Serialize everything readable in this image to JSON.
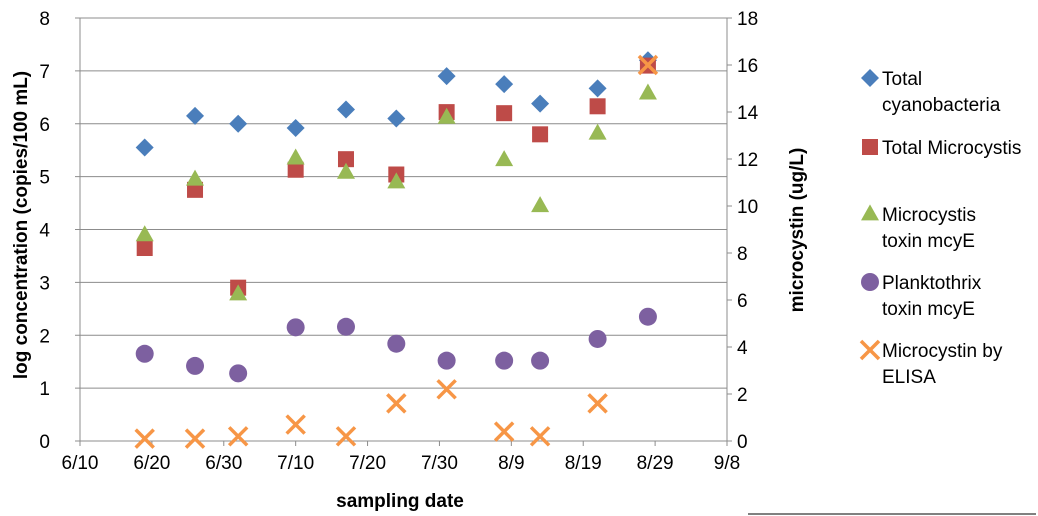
{
  "chart_data": {
    "type": "scatter",
    "title": "",
    "xlabel": "sampling date",
    "ylabel": "log concentration (copies/100 mL)",
    "y2label": "microcystin (ug/L)",
    "x_ticks": [
      "6/10",
      "6/20",
      "6/30",
      "7/10",
      "7/20",
      "7/30",
      "8/9",
      "8/19",
      "8/29",
      "9/8"
    ],
    "ylim": [
      0,
      8
    ],
    "y_ticks": [
      "0",
      "1",
      "2",
      "3",
      "4",
      "5",
      "6",
      "7",
      "8"
    ],
    "y2lim": [
      0,
      18
    ],
    "y2_ticks": [
      "0",
      "2",
      "4",
      "6",
      "8",
      "10",
      "12",
      "14",
      "16",
      "18"
    ],
    "grid": true,
    "legend_position": "right",
    "series": [
      {
        "name": "Total cyanobacteria",
        "axis": "left",
        "marker": "diamond",
        "color": "#4a7ebb",
        "points": [
          {
            "x": "6/19",
            "y": 5.55
          },
          {
            "x": "6/26",
            "y": 6.15
          },
          {
            "x": "7/2",
            "y": 6.0
          },
          {
            "x": "7/10",
            "y": 5.92
          },
          {
            "x": "7/17",
            "y": 6.27
          },
          {
            "x": "7/24",
            "y": 6.1
          },
          {
            "x": "7/31",
            "y": 6.9
          },
          {
            "x": "8/8",
            "y": 6.75
          },
          {
            "x": "8/13",
            "y": 6.38
          },
          {
            "x": "8/21",
            "y": 6.67
          },
          {
            "x": "8/28",
            "y": 7.2
          }
        ]
      },
      {
        "name": "Total Microcystis",
        "axis": "left",
        "marker": "square",
        "color": "#be4b48",
        "points": [
          {
            "x": "6/19",
            "y": 3.65
          },
          {
            "x": "6/26",
            "y": 4.75
          },
          {
            "x": "7/2",
            "y": 2.9
          },
          {
            "x": "7/10",
            "y": 5.13
          },
          {
            "x": "7/17",
            "y": 5.33
          },
          {
            "x": "7/24",
            "y": 5.04
          },
          {
            "x": "7/31",
            "y": 6.22
          },
          {
            "x": "8/8",
            "y": 6.2
          },
          {
            "x": "8/13",
            "y": 5.8
          },
          {
            "x": "8/21",
            "y": 6.33
          },
          {
            "x": "8/28",
            "y": 7.1
          }
        ]
      },
      {
        "name": "Microcystis toxin mcyE",
        "axis": "left",
        "marker": "triangle",
        "color": "#98b954",
        "points": [
          {
            "x": "6/19",
            "y": 3.9
          },
          {
            "x": "6/26",
            "y": 4.95
          },
          {
            "x": "7/2",
            "y": 2.78
          },
          {
            "x": "7/10",
            "y": 5.35
          },
          {
            "x": "7/17",
            "y": 5.08
          },
          {
            "x": "7/24",
            "y": 4.9
          },
          {
            "x": "7/31",
            "y": 6.12
          },
          {
            "x": "8/8",
            "y": 5.32
          },
          {
            "x": "8/13",
            "y": 4.45
          },
          {
            "x": "8/21",
            "y": 5.82
          },
          {
            "x": "8/28",
            "y": 6.58
          }
        ]
      },
      {
        "name": "Planktothrix toxin mcyE",
        "axis": "left",
        "marker": "circle",
        "color": "#7d60a0",
        "points": [
          {
            "x": "6/19",
            "y": 1.65
          },
          {
            "x": "6/26",
            "y": 1.42
          },
          {
            "x": "7/2",
            "y": 1.28
          },
          {
            "x": "7/10",
            "y": 2.15
          },
          {
            "x": "7/17",
            "y": 2.16
          },
          {
            "x": "7/24",
            "y": 1.84
          },
          {
            "x": "7/31",
            "y": 1.52
          },
          {
            "x": "8/8",
            "y": 1.52
          },
          {
            "x": "8/13",
            "y": 1.52
          },
          {
            "x": "8/21",
            "y": 1.93
          },
          {
            "x": "8/28",
            "y": 2.35
          }
        ]
      },
      {
        "name": "Microcystin by ELISA",
        "axis": "right",
        "marker": "x",
        "color": "#f79646",
        "points": [
          {
            "x": "6/19",
            "y": 0.1
          },
          {
            "x": "6/26",
            "y": 0.1
          },
          {
            "x": "7/2",
            "y": 0.2
          },
          {
            "x": "7/10",
            "y": 0.7
          },
          {
            "x": "7/17",
            "y": 0.2
          },
          {
            "x": "7/24",
            "y": 1.6
          },
          {
            "x": "7/31",
            "y": 2.2
          },
          {
            "x": "8/8",
            "y": 0.4
          },
          {
            "x": "8/13",
            "y": 0.2
          },
          {
            "x": "8/21",
            "y": 1.6
          },
          {
            "x": "8/28",
            "y": 16.0
          }
        ]
      }
    ],
    "legend": [
      {
        "lines": [
          "Total",
          "cyanobacteria"
        ]
      },
      {
        "lines": [
          "Total Microcystis"
        ]
      },
      {
        "lines": [
          "Microcystis",
          "toxin mcyE"
        ]
      },
      {
        "lines": [
          "Planktothrix",
          "toxin mcyE"
        ]
      },
      {
        "lines": [
          "Microcystin by",
          "ELISA"
        ]
      }
    ]
  }
}
